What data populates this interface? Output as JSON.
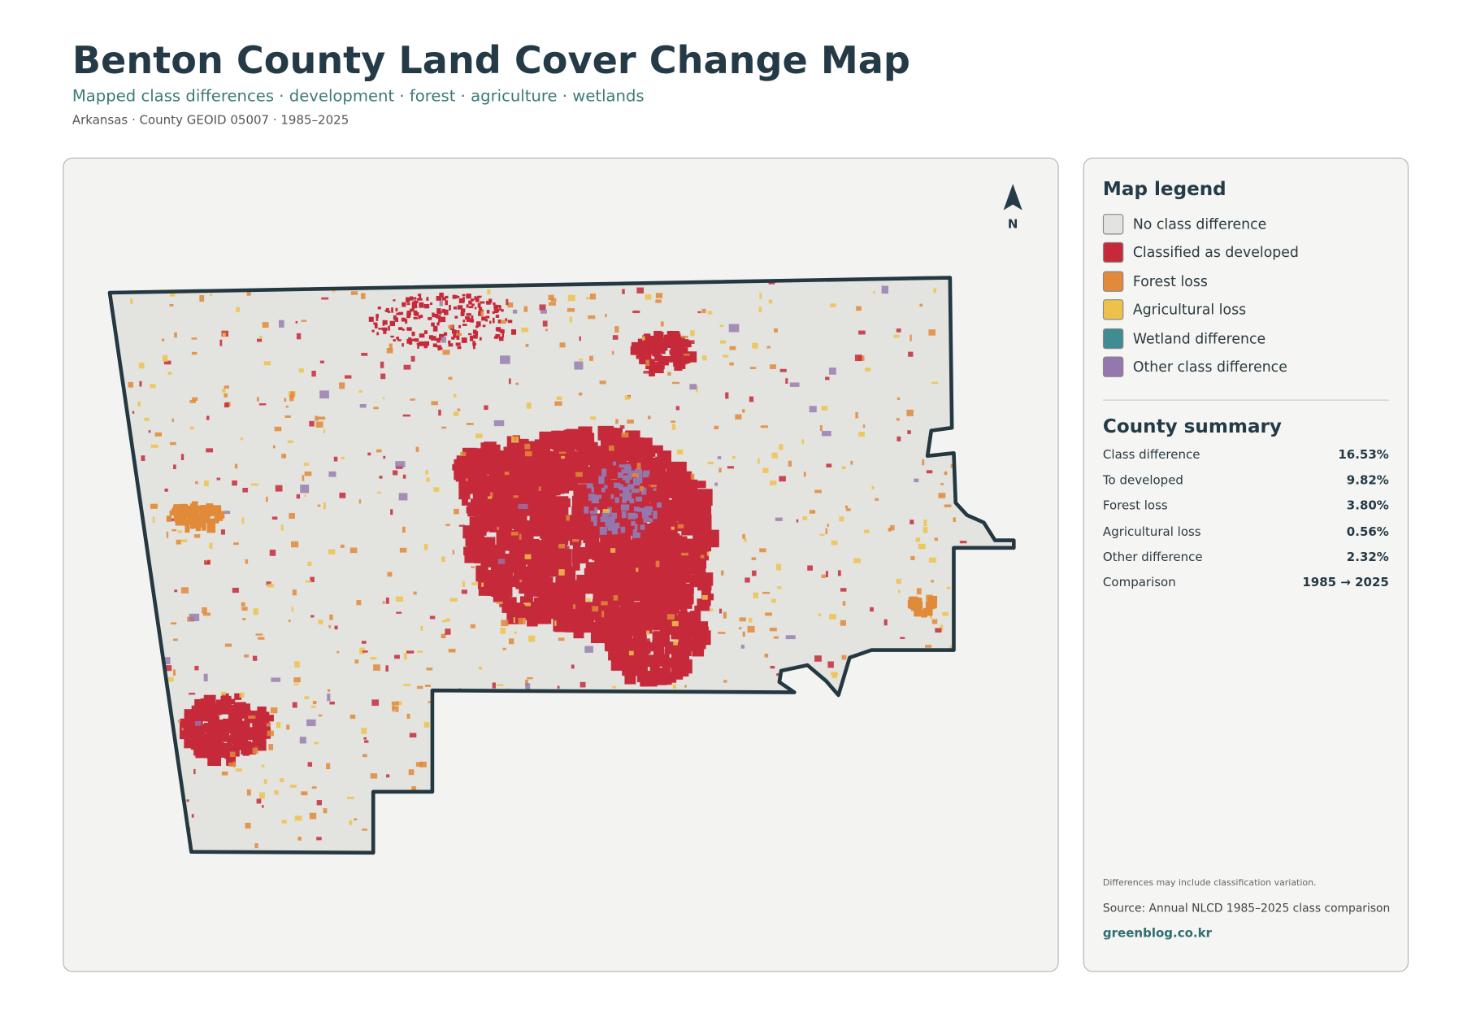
{
  "header": {
    "title": "Benton County Land Cover Change Map",
    "subtitle": "Mapped class differences · development · forest · agriculture · wetlands",
    "meta": "Arkansas · County GEOID 05007 · 1985–2025"
  },
  "map": {
    "north": "N"
  },
  "legend": {
    "title": "Map legend",
    "items": [
      {
        "label": "No class difference",
        "color": "#e3e3df"
      },
      {
        "label": "Classified as developed",
        "color": "#c62a3a"
      },
      {
        "label": "Forest loss",
        "color": "#e08a3a"
      },
      {
        "label": "Agricultural loss",
        "color": "#eec24a"
      },
      {
        "label": "Wetland difference",
        "color": "#3f8c93"
      },
      {
        "label": "Other class difference",
        "color": "#9477ad"
      }
    ]
  },
  "summary": {
    "title": "County summary",
    "rows": [
      [
        "Class difference",
        "16.53%"
      ],
      [
        "To developed",
        "9.82%"
      ],
      [
        "Forest loss",
        "3.80%"
      ],
      [
        "Agricultural loss",
        "0.56%"
      ],
      [
        "Other difference",
        "2.32%"
      ],
      [
        "Comparison",
        "1985 → 2025"
      ]
    ]
  },
  "footer": {
    "note": "Differences may include classification variation.",
    "source": "Source: Annual NLCD 1985–2025 class comparison",
    "site": "greenblog.co.kr"
  }
}
